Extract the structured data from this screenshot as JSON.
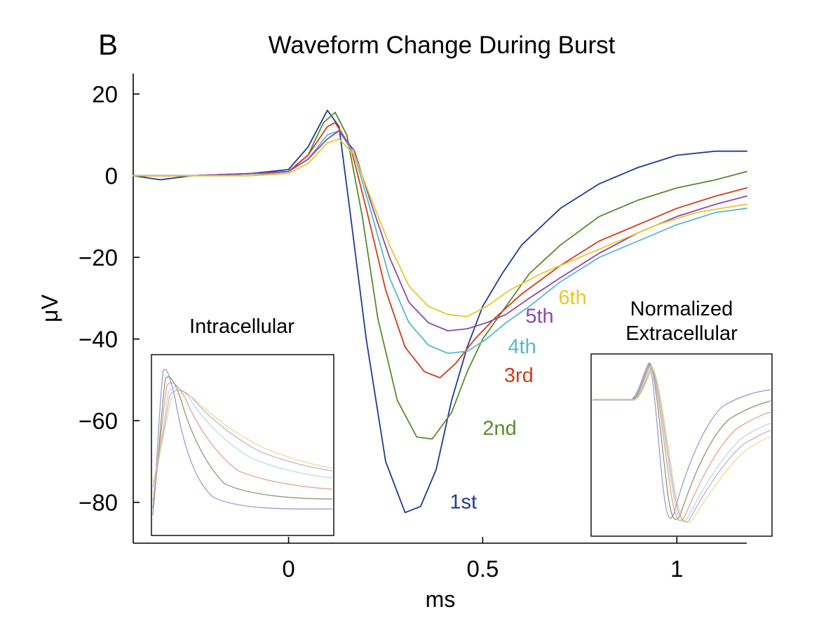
{
  "panel_letter": "B",
  "chart_data": {
    "type": "line",
    "title": "Waveform Change During Burst",
    "xlabel": "ms",
    "ylabel": "μV",
    "xlim": [
      -0.4,
      1.18
    ],
    "ylim": [
      -90,
      25
    ],
    "x_ticks": [
      0,
      0.5,
      1
    ],
    "x_tick_labels": [
      "0",
      "0.5",
      "1"
    ],
    "y_ticks": [
      20,
      0,
      -20,
      -40,
      -60,
      -80
    ],
    "y_tick_labels": [
      "20",
      "0",
      "−20",
      "−40",
      "−60",
      "−80"
    ],
    "grid": false,
    "legend": "inline-labels",
    "series": [
      {
        "name": "1st",
        "color": "#1f3a93",
        "label_at": [
          0.415,
          -81.5
        ],
        "points": [
          [
            -0.4,
            0
          ],
          [
            -0.33,
            -1
          ],
          [
            -0.25,
            0
          ],
          [
            -0.1,
            0.5
          ],
          [
            0,
            1.5
          ],
          [
            0.05,
            7
          ],
          [
            0.1,
            16
          ],
          [
            0.13,
            12
          ],
          [
            0.16,
            -10
          ],
          [
            0.2,
            -40
          ],
          [
            0.25,
            -70
          ],
          [
            0.3,
            -82.5
          ],
          [
            0.34,
            -81
          ],
          [
            0.38,
            -72
          ],
          [
            0.42,
            -55
          ],
          [
            0.46,
            -42
          ],
          [
            0.5,
            -32
          ],
          [
            0.55,
            -24
          ],
          [
            0.6,
            -17
          ],
          [
            0.7,
            -8
          ],
          [
            0.8,
            -2
          ],
          [
            0.9,
            2
          ],
          [
            1.0,
            5
          ],
          [
            1.1,
            6
          ],
          [
            1.18,
            6
          ]
        ]
      },
      {
        "name": "2nd",
        "color": "#5a8a2a",
        "label_at": [
          0.5,
          -63.5
        ],
        "points": [
          [
            -0.4,
            0
          ],
          [
            -0.25,
            0
          ],
          [
            -0.1,
            0.5
          ],
          [
            0,
            1
          ],
          [
            0.05,
            5
          ],
          [
            0.09,
            13
          ],
          [
            0.12,
            15.5
          ],
          [
            0.15,
            10
          ],
          [
            0.19,
            -10
          ],
          [
            0.23,
            -35
          ],
          [
            0.28,
            -55
          ],
          [
            0.33,
            -64
          ],
          [
            0.37,
            -64.5
          ],
          [
            0.42,
            -58
          ],
          [
            0.46,
            -48
          ],
          [
            0.5,
            -40
          ],
          [
            0.56,
            -32
          ],
          [
            0.62,
            -24
          ],
          [
            0.7,
            -17
          ],
          [
            0.8,
            -10
          ],
          [
            0.9,
            -6
          ],
          [
            1.0,
            -3
          ],
          [
            1.1,
            -1
          ],
          [
            1.18,
            1
          ]
        ]
      },
      {
        "name": "3rd",
        "color": "#d43a1a",
        "label_at": [
          0.555,
          -50.5
        ],
        "points": [
          [
            -0.4,
            0
          ],
          [
            -0.25,
            0
          ],
          [
            -0.1,
            0.5
          ],
          [
            0,
            1
          ],
          [
            0.05,
            5
          ],
          [
            0.1,
            12
          ],
          [
            0.12,
            13
          ],
          [
            0.16,
            7
          ],
          [
            0.2,
            -8
          ],
          [
            0.25,
            -28
          ],
          [
            0.3,
            -42
          ],
          [
            0.35,
            -48
          ],
          [
            0.39,
            -49.5
          ],
          [
            0.43,
            -46
          ],
          [
            0.48,
            -40
          ],
          [
            0.53,
            -35
          ],
          [
            0.6,
            -29
          ],
          [
            0.7,
            -22
          ],
          [
            0.8,
            -16
          ],
          [
            0.9,
            -12
          ],
          [
            1.0,
            -8
          ],
          [
            1.1,
            -5
          ],
          [
            1.18,
            -3
          ]
        ]
      },
      {
        "name": "4th",
        "color": "#5bb8c8",
        "label_at": [
          0.565,
          -43.5
        ],
        "points": [
          [
            -0.4,
            0
          ],
          [
            -0.25,
            0
          ],
          [
            -0.1,
            0
          ],
          [
            0,
            1
          ],
          [
            0.05,
            4
          ],
          [
            0.1,
            10
          ],
          [
            0.13,
            11
          ],
          [
            0.17,
            5
          ],
          [
            0.21,
            -8
          ],
          [
            0.26,
            -25
          ],
          [
            0.31,
            -36
          ],
          [
            0.36,
            -41.5
          ],
          [
            0.41,
            -43.5
          ],
          [
            0.46,
            -43
          ],
          [
            0.51,
            -40
          ],
          [
            0.56,
            -36
          ],
          [
            0.62,
            -32
          ],
          [
            0.7,
            -26
          ],
          [
            0.8,
            -20
          ],
          [
            0.9,
            -16
          ],
          [
            1.0,
            -12
          ],
          [
            1.1,
            -9
          ],
          [
            1.18,
            -8
          ]
        ]
      },
      {
        "name": "5th",
        "color": "#8a4aa8",
        "label_at": [
          0.61,
          -36
        ],
        "points": [
          [
            -0.4,
            0
          ],
          [
            -0.25,
            0
          ],
          [
            -0.1,
            0.5
          ],
          [
            0,
            1
          ],
          [
            0.05,
            4
          ],
          [
            0.1,
            9
          ],
          [
            0.13,
            11
          ],
          [
            0.17,
            6
          ],
          [
            0.21,
            -6
          ],
          [
            0.26,
            -20
          ],
          [
            0.31,
            -31
          ],
          [
            0.36,
            -36
          ],
          [
            0.41,
            -38
          ],
          [
            0.46,
            -37.5
          ],
          [
            0.51,
            -36
          ],
          [
            0.56,
            -34
          ],
          [
            0.62,
            -30
          ],
          [
            0.7,
            -25
          ],
          [
            0.8,
            -19
          ],
          [
            0.9,
            -14
          ],
          [
            1.0,
            -10
          ],
          [
            1.1,
            -7
          ],
          [
            1.18,
            -5
          ]
        ]
      },
      {
        "name": "6th",
        "color": "#e8c82a",
        "label_at": [
          0.695,
          -31.5
        ],
        "points": [
          [
            -0.4,
            0
          ],
          [
            -0.25,
            0
          ],
          [
            -0.1,
            0
          ],
          [
            0,
            0.5
          ],
          [
            0.05,
            3
          ],
          [
            0.1,
            8
          ],
          [
            0.13,
            9
          ],
          [
            0.17,
            5
          ],
          [
            0.21,
            -5
          ],
          [
            0.26,
            -17
          ],
          [
            0.31,
            -27
          ],
          [
            0.36,
            -32
          ],
          [
            0.41,
            -34
          ],
          [
            0.46,
            -34.5
          ],
          [
            0.51,
            -32
          ],
          [
            0.57,
            -28
          ],
          [
            0.65,
            -24
          ],
          [
            0.75,
            -20
          ],
          [
            0.85,
            -16
          ],
          [
            0.95,
            -12
          ],
          [
            1.05,
            -9
          ],
          [
            1.18,
            -7
          ]
        ]
      }
    ]
  },
  "insets": [
    {
      "title_lines": [
        "Intracellular"
      ]
    },
    {
      "title_lines": [
        "Normalized",
        "Extracellular"
      ]
    }
  ]
}
